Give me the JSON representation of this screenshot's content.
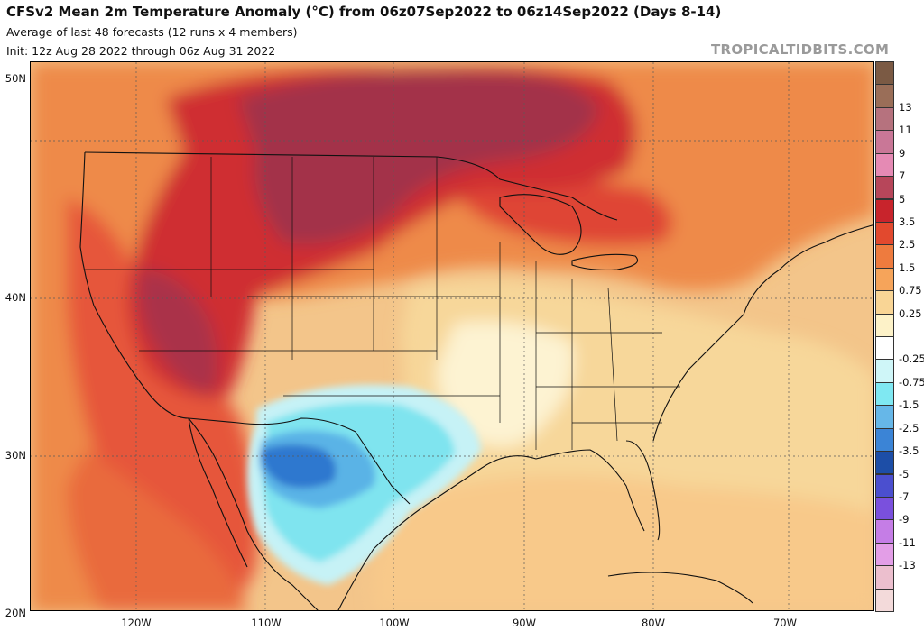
{
  "header": {
    "title": "CFSv2 Mean 2m Temperature Anomaly (°C) from 06z07Sep2022 to 06z14Sep2022 (Days 8-14)",
    "subtitle": "Average of last 48 forecasts (12 runs x 4 members)",
    "init_line": "Init: 12z Aug 28 2022 through 06z Aug 31 2022",
    "brand": "TROPICALTIDBITS.COM"
  },
  "map": {
    "latitude_labels": [
      "50N",
      "40N",
      "30N",
      "20N"
    ],
    "longitude_labels": [
      "120W",
      "110W",
      "100W",
      "90W",
      "80W",
      "70W"
    ],
    "regions": [
      {
        "name": "anomaly-high-plains",
        "value": 3.5
      },
      {
        "name": "anomaly-great-basin",
        "value": 3.0
      },
      {
        "name": "anomaly-south-texas-mexico",
        "value": -3.5
      },
      {
        "name": "anomaly-southeast",
        "value": 0.0
      }
    ]
  },
  "colorbar": {
    "units": "°C",
    "entries": [
      {
        "label": "",
        "color": "#7b5a44"
      },
      {
        "label": "13",
        "color": "#9a6e58"
      },
      {
        "label": "11",
        "color": "#b6727e"
      },
      {
        "label": "9",
        "color": "#c97797"
      },
      {
        "label": "7",
        "color": "#e58ab4"
      },
      {
        "label": "5",
        "color": "#b7465a"
      },
      {
        "label": "3.5",
        "color": "#c8242c"
      },
      {
        "label": "2.5",
        "color": "#e2492e"
      },
      {
        "label": "1.5",
        "color": "#ee7b3e"
      },
      {
        "label": "0.75",
        "color": "#f6a45a"
      },
      {
        "label": "0.25",
        "color": "#f9d595"
      },
      {
        "label": "",
        "color": "#fdf2c8"
      },
      {
        "label": "-0.25",
        "color": "#ffffff"
      },
      {
        "label": "-0.75",
        "color": "#cff6f8"
      },
      {
        "label": "-1.5",
        "color": "#7fe8f2"
      },
      {
        "label": "-2.5",
        "color": "#66b7e8"
      },
      {
        "label": "-3.5",
        "color": "#3b84d6"
      },
      {
        "label": "-5",
        "color": "#1d4ea7"
      },
      {
        "label": "-7",
        "color": "#4b4fcf"
      },
      {
        "label": "-9",
        "color": "#7a50dd"
      },
      {
        "label": "-11",
        "color": "#c57de6"
      },
      {
        "label": "-13",
        "color": "#e39ee7"
      },
      {
        "label": "",
        "color": "#ecbfce"
      },
      {
        "label": "",
        "color": "#f3dada"
      }
    ]
  }
}
